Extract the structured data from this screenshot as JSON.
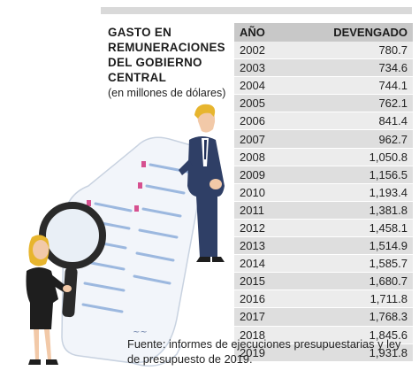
{
  "title_lines": [
    "GASTO EN",
    "REMUNERACIONES",
    "DEL GOBIERNO",
    "CENTRAL"
  ],
  "subtitle": "(en millones de dólares)",
  "source": "Fuente: informes de ejecuciones presupuestarias y ley de presupuesto de 2019.",
  "chart_data": {
    "type": "table",
    "columns": [
      "AÑO",
      "DEVENGADO"
    ],
    "rows": [
      {
        "year": "2002",
        "value": "780.7"
      },
      {
        "year": "2003",
        "value": "734.6"
      },
      {
        "year": "2004",
        "value": "744.1"
      },
      {
        "year": "2005",
        "value": "762.1"
      },
      {
        "year": "2006",
        "value": "841.4"
      },
      {
        "year": "2007",
        "value": "962.7"
      },
      {
        "year": "2008",
        "value": "1,050.8"
      },
      {
        "year": "2009",
        "value": "1,156.5"
      },
      {
        "year": "2010",
        "value": "1,193.4"
      },
      {
        "year": "2011",
        "value": "1,381.8"
      },
      {
        "year": "2012",
        "value": "1,458.1"
      },
      {
        "year": "2013",
        "value": "1,514.9"
      },
      {
        "year": "2014",
        "value": "1,585.7"
      },
      {
        "year": "2015",
        "value": "1,680.7"
      },
      {
        "year": "2016",
        "value": "1,711.8"
      },
      {
        "year": "2017",
        "value": "1,768.3"
      },
      {
        "year": "2018",
        "value": "1,845.6"
      },
      {
        "year": "2019",
        "value": "1,931.8"
      }
    ]
  }
}
